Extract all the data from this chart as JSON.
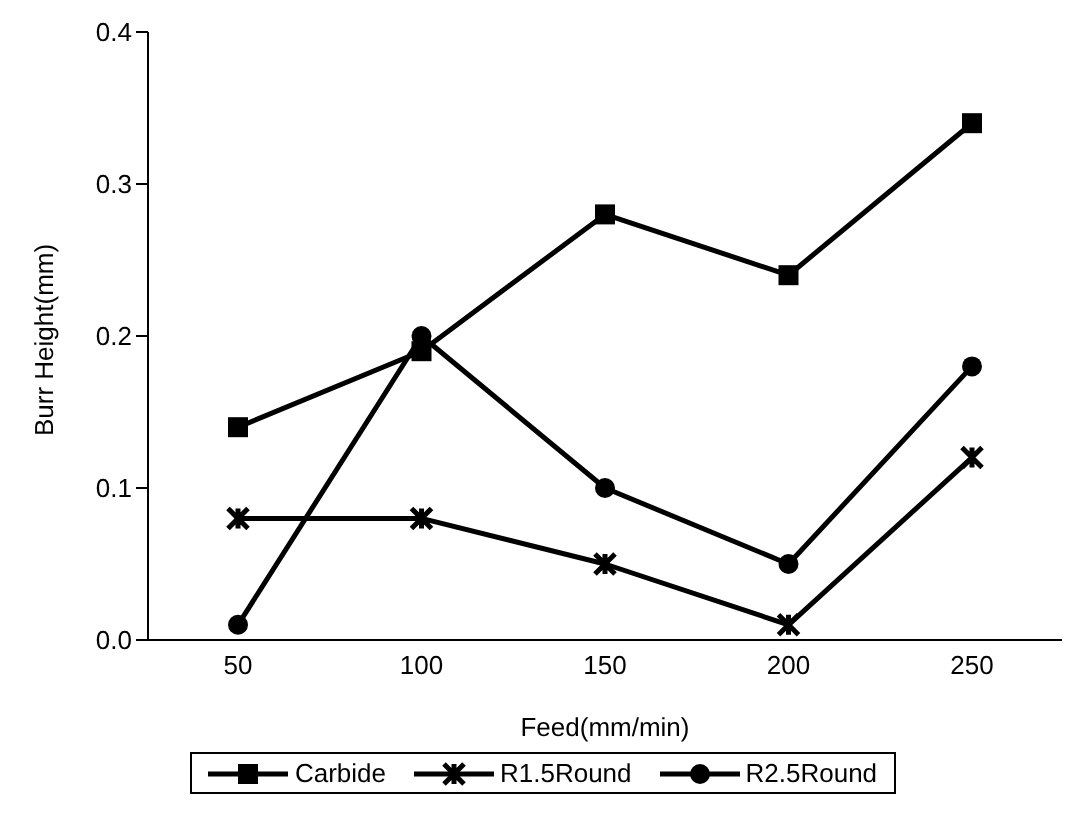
{
  "chart_data": {
    "type": "line",
    "xlabel": "Feed(mm/min)",
    "ylabel": "Burr Height(mm)",
    "categories": [
      "50",
      "100",
      "150",
      "200",
      "250"
    ],
    "series": [
      {
        "name": "Carbide",
        "color": "#000000",
        "marker": "square",
        "values": [
          0.14,
          0.19,
          0.28,
          0.24,
          0.34
        ]
      },
      {
        "name": "R1.5Round",
        "color": "#000000",
        "marker": "cross",
        "values": [
          0.08,
          0.08,
          0.05,
          0.01,
          0.12
        ]
      },
      {
        "name": "R2.5Round",
        "color": "#000000",
        "marker": "circle",
        "values": [
          0.01,
          0.2,
          0.1,
          0.05,
          0.18
        ]
      }
    ],
    "ylim": [
      0,
      0.4
    ],
    "yticks": [
      {
        "value": 0,
        "label": "0.0"
      },
      0.1,
      0.2,
      0.3,
      0.4
    ],
    "grid": false,
    "legend": "bottom",
    "line_style": "solid"
  }
}
